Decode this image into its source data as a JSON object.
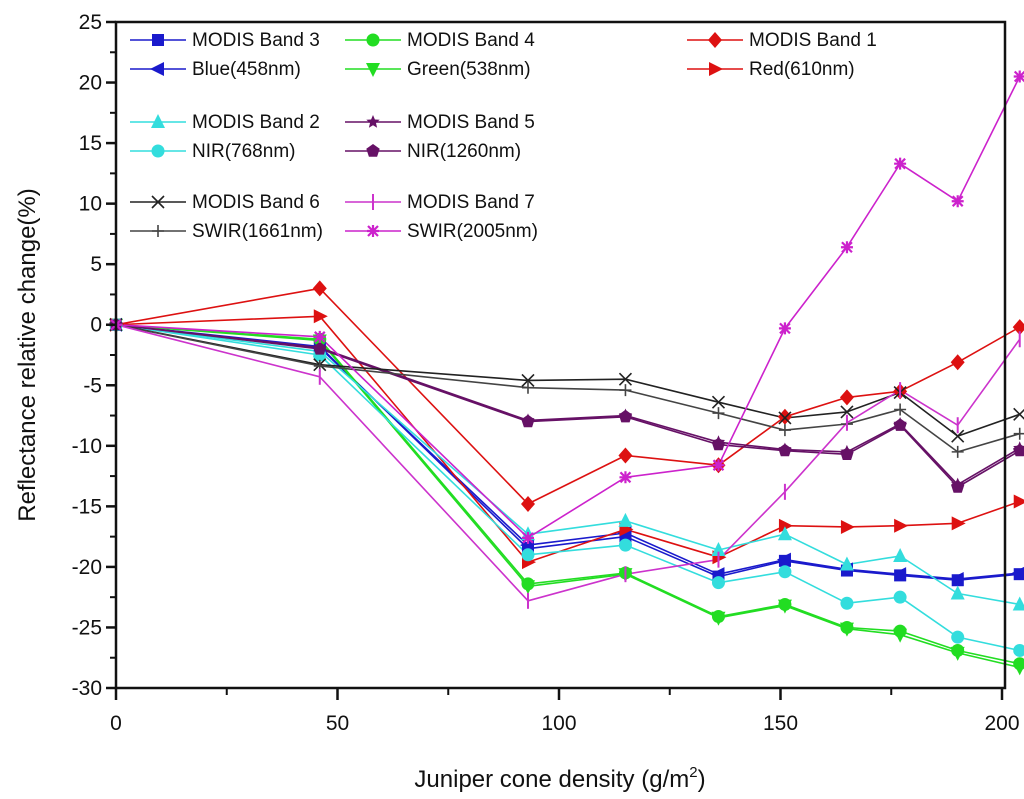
{
  "chart_data": {
    "type": "line",
    "title": "",
    "xlabel": "Juniper cone density (g/m",
    "xlabel_sup": "2",
    "xlabel_end": ")",
    "ylabel": "Reflectance relative change(%)",
    "xlim": [
      0,
      205
    ],
    "ylim": [
      -30,
      25
    ],
    "x_ticks": [
      0,
      50,
      100,
      150,
      200
    ],
    "y_ticks": [
      25,
      20,
      15,
      10,
      5,
      0,
      -5,
      -10,
      -15,
      -20,
      -25,
      -30
    ],
    "grid": false,
    "legend_position": "top",
    "x": [
      0,
      46,
      93,
      115,
      136,
      151,
      165,
      177,
      190,
      204
    ],
    "series": [
      {
        "name": "MODIS Band 3",
        "color": "#1a1acc",
        "marker": "square",
        "values": [
          0,
          -1.8,
          -18.5,
          -17.5,
          -20.8,
          -19.5,
          -20.3,
          -20.7,
          -21.1,
          -20.6
        ]
      },
      {
        "name": "Blue(458nm)",
        "color": "#1a1acc",
        "marker": "triangle-left",
        "values": [
          0,
          -1.9,
          -18.2,
          -17.2,
          -20.6,
          -19.4,
          -20.2,
          -20.6,
          -21.0,
          -20.5
        ]
      },
      {
        "name": "MODIS Band 4",
        "color": "#22dd22",
        "marker": "circle",
        "values": [
          0,
          -1.2,
          -21.4,
          -20.5,
          -24.1,
          -23.1,
          -25.0,
          -25.3,
          -26.9,
          -28.0
        ]
      },
      {
        "name": "Green(538nm)",
        "color": "#22dd22",
        "marker": "triangle-down",
        "values": [
          0,
          -1.3,
          -21.6,
          -20.6,
          -24.2,
          -23.2,
          -25.1,
          -25.6,
          -27.1,
          -28.3
        ]
      },
      {
        "name": "MODIS Band 1",
        "color": "#dd1111",
        "marker": "diamond",
        "values": [
          0,
          3.0,
          -14.8,
          -10.8,
          -11.6,
          -7.6,
          -6.0,
          -5.5,
          -3.1,
          -0.2
        ]
      },
      {
        "name": "Red(610nm)",
        "color": "#dd1111",
        "marker": "triangle-right",
        "values": [
          0,
          0.7,
          -19.6,
          -16.9,
          -19.2,
          -16.6,
          -16.7,
          -16.6,
          -16.4,
          -14.6
        ]
      },
      {
        "name": "MODIS Band 2",
        "color": "#33dddd",
        "marker": "triangle-up",
        "values": [
          0,
          -2.2,
          -17.3,
          -16.2,
          -18.6,
          -17.3,
          -19.8,
          -19.1,
          -22.2,
          -23.1
        ]
      },
      {
        "name": "NIR(768nm)",
        "color": "#33dddd",
        "marker": "circle",
        "values": [
          0,
          -2.5,
          -19.0,
          -18.2,
          -21.3,
          -20.4,
          -23.0,
          -22.5,
          -25.8,
          -26.9
        ]
      },
      {
        "name": "MODIS Band 5",
        "color": "#661166",
        "marker": "star",
        "values": [
          0,
          -1.9,
          -7.9,
          -7.5,
          -9.7,
          -10.3,
          -10.5,
          -8.2,
          -13.2,
          -10.2
        ]
      },
      {
        "name": "NIR(1260nm)",
        "color": "#661166",
        "marker": "pentagon",
        "values": [
          0,
          -2.0,
          -8.0,
          -7.6,
          -9.9,
          -10.4,
          -10.7,
          -8.3,
          -13.4,
          -10.4
        ]
      },
      {
        "name": "MODIS Band 6",
        "color": "#222222",
        "marker": "x",
        "values": [
          0,
          -3.3,
          -4.6,
          -4.5,
          -6.4,
          -7.7,
          -7.2,
          -5.6,
          -9.2,
          -7.4
        ]
      },
      {
        "name": "SWIR(1661nm)",
        "color": "#444444",
        "marker": "plus",
        "values": [
          0,
          -3.4,
          -5.2,
          -5.4,
          -7.3,
          -8.7,
          -8.2,
          -7.0,
          -10.5,
          -9.0
        ]
      },
      {
        "name": "MODIS Band 7",
        "color": "#cc33cc",
        "marker": "vbar",
        "values": [
          0,
          -4.3,
          -22.8,
          -20.6,
          -19.4,
          -13.8,
          -8.1,
          -5.4,
          -8.3,
          -1.2
        ]
      },
      {
        "name": "SWIR(2005nm)",
        "color": "#cc22cc",
        "marker": "asterisk",
        "values": [
          0,
          -1.0,
          -17.6,
          -12.6,
          -11.6,
          -0.3,
          6.4,
          13.3,
          10.2,
          20.5
        ]
      }
    ],
    "legend_layout": [
      [
        0,
        2,
        4
      ],
      [
        1,
        3,
        5
      ],
      [
        6,
        8,
        null
      ],
      [
        7,
        9,
        null
      ],
      [
        10,
        12,
        null
      ],
      [
        11,
        13,
        null
      ]
    ]
  }
}
